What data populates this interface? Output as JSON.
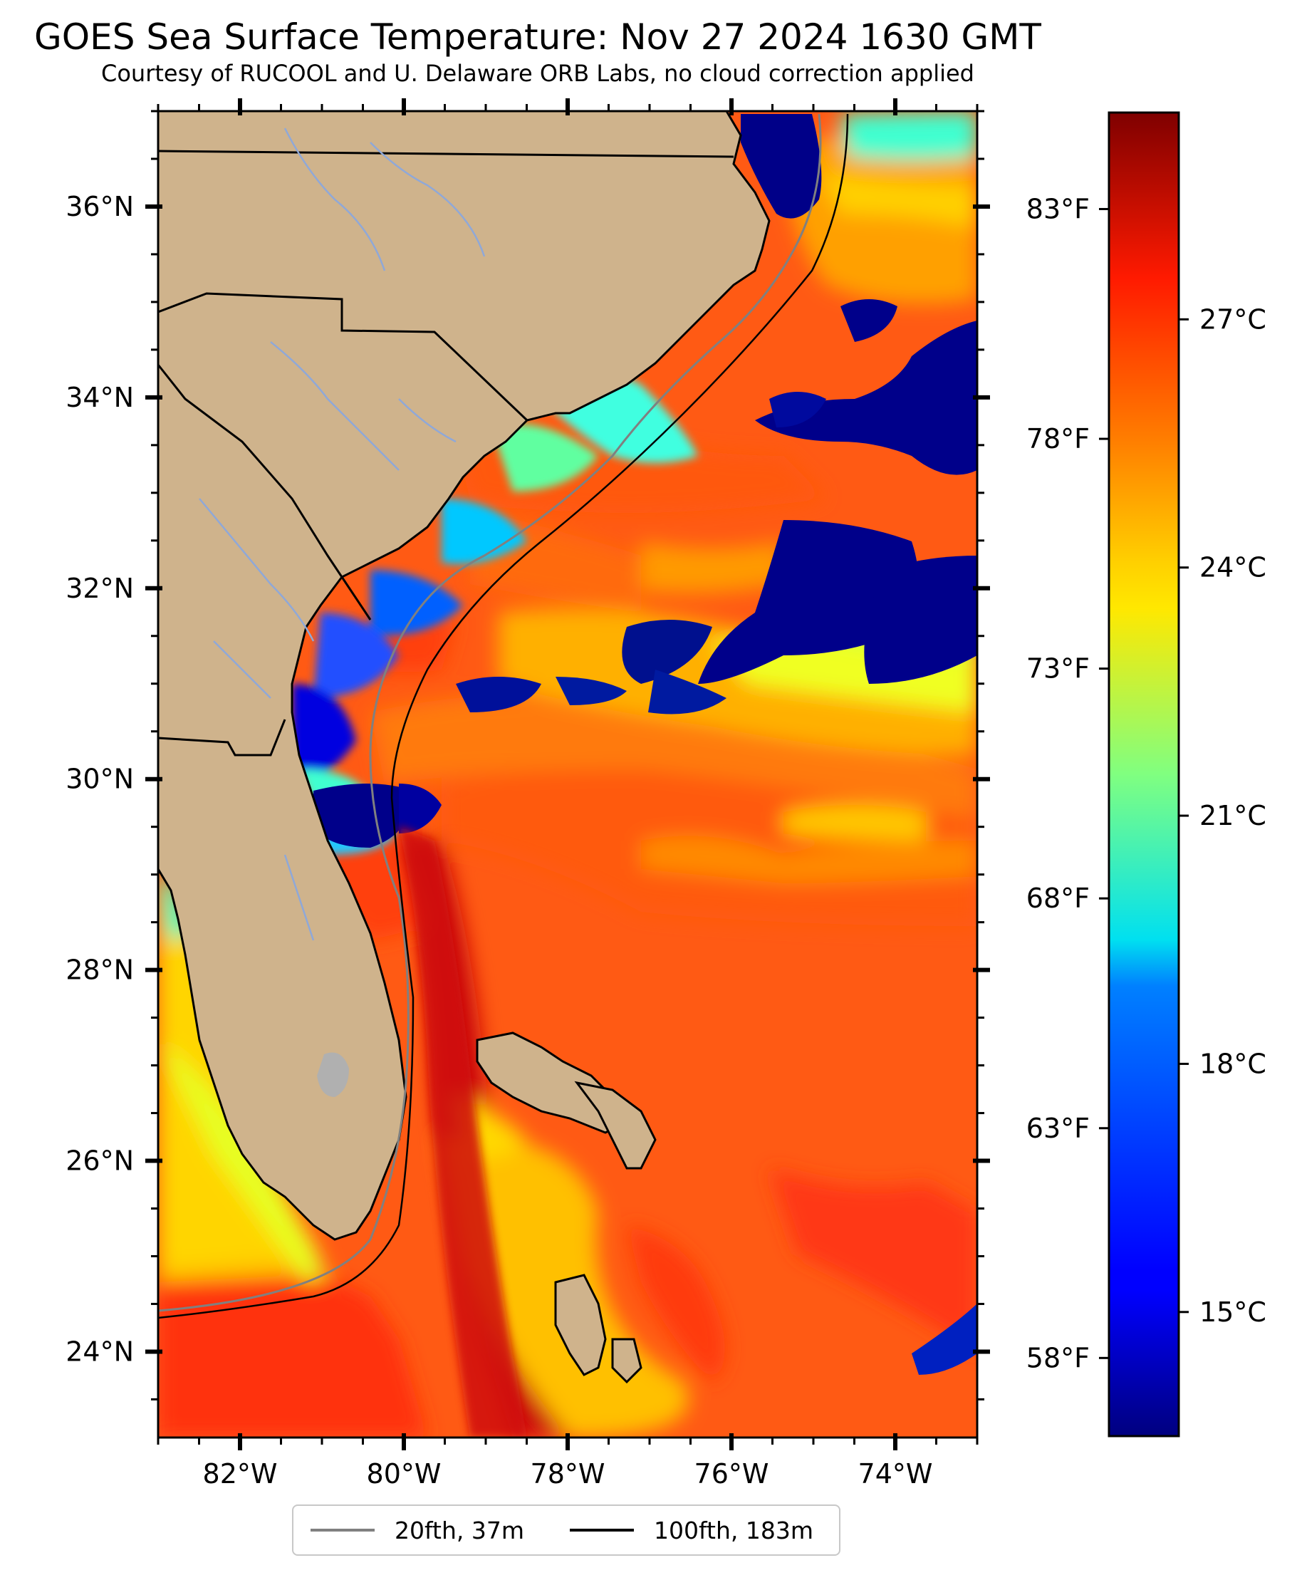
{
  "header": {
    "title": "GOES Sea Surface Temperature: Nov 27 2024 1630 GMT",
    "subtitle": "Courtesy of RUCOOL and U. Delaware ORB Labs, no cloud correction applied"
  },
  "map": {
    "lon_range": [
      -83,
      -73
    ],
    "lat_range": [
      23.1,
      37.0
    ],
    "longitude_labels": [
      "82°W",
      "80°W",
      "78°W",
      "76°W",
      "74°W"
    ],
    "longitude_values": [
      -82,
      -80,
      -78,
      -76,
      -74
    ],
    "latitude_labels": [
      "36°N",
      "34°N",
      "32°N",
      "30°N",
      "28°N",
      "26°N",
      "24°N"
    ],
    "latitude_values": [
      36,
      34,
      32,
      30,
      28,
      26,
      24
    ],
    "colors": {
      "land": "#cfb38c",
      "warm_water": "#ff4a10",
      "gulf_stream": "#d01010",
      "cold_cloud": "#000080",
      "depth_20fth": "#808080",
      "depth_100fth": "#000000"
    }
  },
  "colorbar": {
    "colormap": "jet",
    "celsius_range": [
      13.5,
      29.5
    ],
    "fahrenheit_labels": [
      "83°F",
      "78°F",
      "73°F",
      "68°F",
      "63°F",
      "58°F"
    ],
    "fahrenheit_values": [
      83,
      78,
      73,
      68,
      63,
      58
    ],
    "celsius_labels": [
      "27°C",
      "24°C",
      "21°C",
      "18°C",
      "15°C"
    ],
    "celsius_values": [
      27,
      24,
      21,
      18,
      15
    ]
  },
  "legend": {
    "items": [
      {
        "label": "20fth, 37m",
        "color": "#808080"
      },
      {
        "label": "100fth, 183m",
        "color": "#000000"
      }
    ]
  }
}
